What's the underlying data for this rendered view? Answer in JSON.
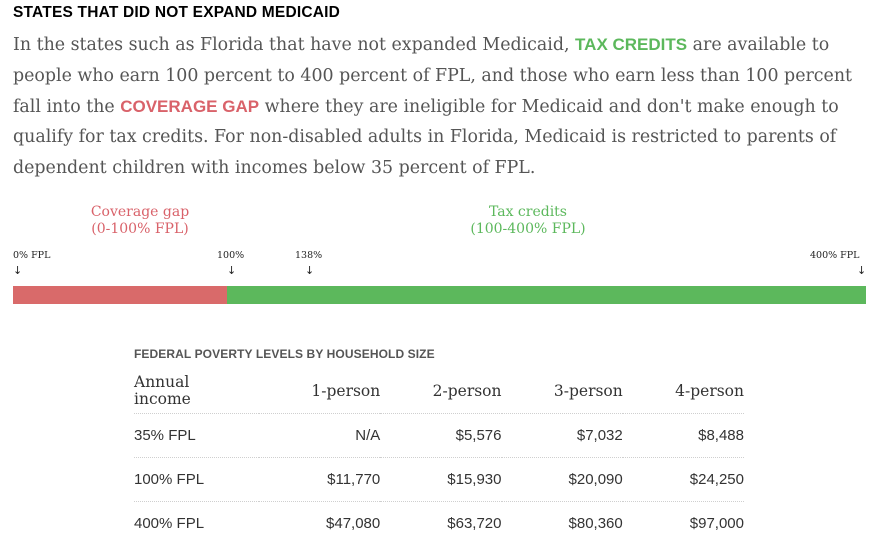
{
  "heading": "STATES THAT DID NOT EXPAND MEDICAID",
  "paragraph": {
    "part1": "In the states such as Florida that have not expanded Medicaid, ",
    "highlight1": "TAX CREDITS",
    "part2": " are available to people who earn 100 percent to 400 percent of FPL, and those who earn less than 100 percent fall into the ",
    "highlight2": "COVERAGE GAP",
    "part3": " where they are ineligible for Medicaid and don't make enough to qualify for tax credits. For non-disabled adults in Florida, Medicaid is restricted to parents of dependent children with incomes below 35 percent of FPL."
  },
  "ranges": {
    "coverage_gap": {
      "label": "Coverage gap",
      "sub": "(0-100% FPL)",
      "start_pct_fpl": 0,
      "end_pct_fpl": 100,
      "color": "#d96a6a"
    },
    "tax_credits": {
      "label": "Tax credits",
      "sub": "(100-400% FPL)",
      "start_pct_fpl": 100,
      "end_pct_fpl": 400,
      "color": "#5cb85c"
    }
  },
  "ticks": [
    {
      "label": "0% FPL",
      "value": 0
    },
    {
      "label": "100%",
      "value": 100
    },
    {
      "label": "138%",
      "value": 138
    },
    {
      "label": "400% FPL",
      "value": 400
    }
  ],
  "arrow_glyph": "↓",
  "table": {
    "title": "FEDERAL POVERTY LEVELS BY HOUSEHOLD SIZE",
    "header_first_line1": "Annual",
    "header_first_line2": "income",
    "columns": [
      "1-person",
      "2-person",
      "3-person",
      "4-person"
    ],
    "rows": [
      {
        "label": "35% FPL",
        "values": [
          "N/A",
          "$5,576",
          "$7,032",
          "$8,488"
        ]
      },
      {
        "label": "100% FPL",
        "values": [
          "$11,770",
          "$15,930",
          "$20,090",
          "$24,250"
        ]
      },
      {
        "label": "400% FPL",
        "values": [
          "$47,080",
          "$63,720",
          "$80,360",
          "$97,000"
        ]
      }
    ]
  }
}
